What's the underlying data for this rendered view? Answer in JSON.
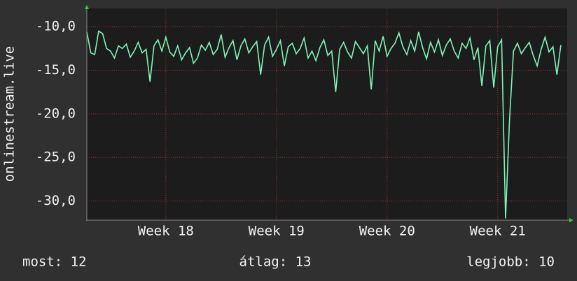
{
  "chart_data": {
    "type": "line",
    "y_label": "onlinestream.live",
    "summary": [
      "most: 12",
      "átlag: 13",
      "legjobb: 10"
    ],
    "x": [
      0,
      0.25,
      0.5,
      0.75,
      1,
      1.25,
      1.5,
      1.75,
      2,
      2.25,
      2.5,
      2.75,
      3,
      3.25,
      3.5,
      3.75,
      4,
      4.25,
      4.5,
      4.75,
      5,
      5.25,
      5.5,
      5.75,
      6,
      6.25,
      6.5,
      6.75,
      7,
      7.25,
      7.5,
      7.75,
      8,
      8.25,
      8.5,
      8.75,
      9,
      9.25,
      9.5,
      9.75,
      10,
      10.25,
      10.5,
      10.75,
      11,
      11.25,
      11.5,
      11.75,
      12,
      12.25,
      12.5,
      12.75,
      13,
      13.25,
      13.5,
      13.75,
      14,
      14.25,
      14.5,
      14.75,
      15,
      15.25,
      15.5,
      15.75,
      16,
      16.25,
      16.5,
      16.75,
      17,
      17.25,
      17.5,
      17.75,
      18,
      18.25,
      18.5,
      18.75,
      19,
      19.25,
      19.5,
      19.75,
      20,
      20.25,
      20.5,
      20.75,
      21,
      21.25,
      21.5,
      21.75,
      22,
      22.25,
      22.5,
      22.75,
      23,
      23.25,
      23.5,
      23.75,
      24,
      24.25,
      24.5,
      24.75,
      25,
      25.25,
      25.5,
      25.75,
      26,
      26.25,
      26.5,
      26.75,
      27,
      27.25,
      27.5,
      27.75,
      28,
      28.25,
      28.5,
      28.75,
      29,
      29.25,
      29.5,
      29.75,
      30
    ],
    "series": [
      {
        "name": "onlinestream.live",
        "color": "#7ff5b8",
        "values": [
          -10.6,
          -13,
          -13.2,
          -10.5,
          -10.8,
          -12.5,
          -12.8,
          -13.6,
          -12.2,
          -12.5,
          -12,
          -13.5,
          -12.8,
          -11.8,
          -13,
          -12.6,
          -16.3,
          -12.2,
          -11.5,
          -12.8,
          -11.2,
          -12.9,
          -13.4,
          -12.2,
          -13.8,
          -13,
          -12.4,
          -14.2,
          -13.6,
          -12.1,
          -12.7,
          -11.8,
          -13.2,
          -12.6,
          -10.9,
          -13.5,
          -12.4,
          -11.6,
          -13.8,
          -12.2,
          -11.4,
          -13,
          -12.3,
          -11.7,
          -15.5,
          -12.1,
          -11.2,
          -13.4,
          -12.6,
          -11.6,
          -14.5,
          -12.3,
          -11.9,
          -13.1,
          -12.5,
          -11.3,
          -13.6,
          -12.8,
          -13.9,
          -12.4,
          -11.5,
          -13.3,
          -12.8,
          -17.5,
          -12.6,
          -11.8,
          -12.9,
          -13.6,
          -11.7,
          -12.4,
          -13.1,
          -12.2,
          -17.2,
          -11.6,
          -12.8,
          -11.1,
          -13.4,
          -12.5,
          -11.9,
          -10.7,
          -12.3,
          -13.2,
          -11.6,
          -12.8,
          -10.6,
          -12.4,
          -13.7,
          -11.8,
          -12.9,
          -11.5,
          -13.3,
          -12.1,
          -11.4,
          -12.8,
          -13.6,
          -11.9,
          -12.5,
          -11.3,
          -13.8,
          -12.4,
          -16.8,
          -12.2,
          -11.6,
          -17,
          -12.3,
          -11.5,
          -32,
          -20.7,
          -12.8,
          -11.9,
          -13.1,
          -12.4,
          -11.8,
          -13.3,
          -14.5,
          -12.6,
          -11.2,
          -12.9,
          -12.3,
          -15.5,
          -12.1
        ]
      }
    ],
    "xlim": [
      0,
      30.4
    ],
    "xticks": [
      {
        "value": 5,
        "label": "Week 18"
      },
      {
        "value": 12,
        "label": "Week 19"
      },
      {
        "value": 19,
        "label": "Week 20"
      },
      {
        "value": 26,
        "label": "Week 21"
      }
    ],
    "ylim": [
      -32.2,
      -7.9
    ],
    "yticks": [
      {
        "value": -30,
        "label": "-30,0"
      },
      {
        "value": -25,
        "label": "-25,0"
      },
      {
        "value": -20,
        "label": "-20,0"
      },
      {
        "value": -15,
        "label": "-15,0"
      },
      {
        "value": -10,
        "label": "-10,0"
      }
    ],
    "grid": true
  }
}
